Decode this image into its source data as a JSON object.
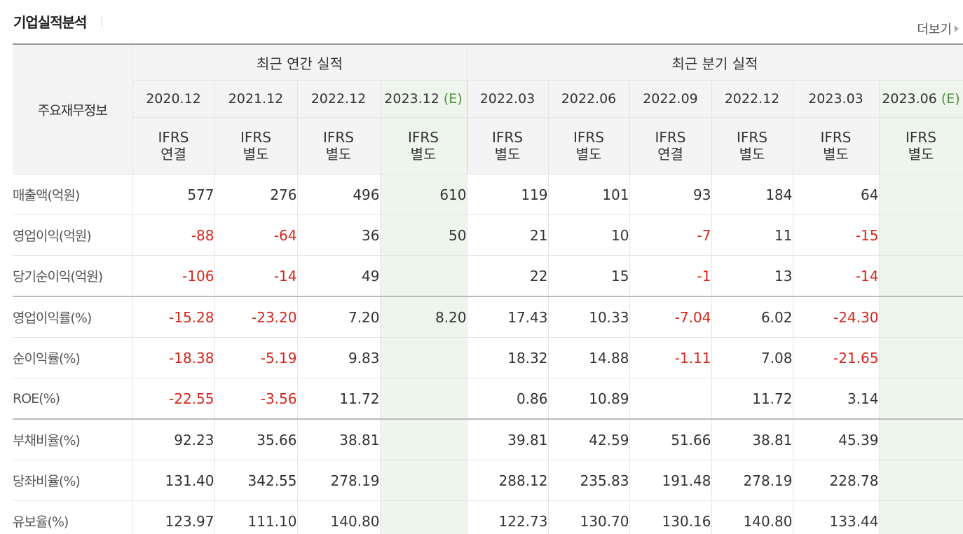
{
  "section": {
    "title": "기업실적분석",
    "more_label": "더보기"
  },
  "table": {
    "row_header_label": "주요재무정보",
    "annual_group_label": "최근 연간 실적",
    "quarter_group_label": "최근 분기 실적",
    "periods": [
      {
        "label": "2020.12",
        "est": "",
        "ifrs1": "IFRS",
        "ifrs2": "연결"
      },
      {
        "label": "2021.12",
        "est": "",
        "ifrs1": "IFRS",
        "ifrs2": "별도"
      },
      {
        "label": "2022.12",
        "est": "",
        "ifrs1": "IFRS",
        "ifrs2": "별도"
      },
      {
        "label": "2023.12",
        "est": "(E)",
        "ifrs1": "IFRS",
        "ifrs2": "별도"
      },
      {
        "label": "2022.03",
        "est": "",
        "ifrs1": "IFRS",
        "ifrs2": "별도"
      },
      {
        "label": "2022.06",
        "est": "",
        "ifrs1": "IFRS",
        "ifrs2": "별도"
      },
      {
        "label": "2022.09",
        "est": "",
        "ifrs1": "IFRS",
        "ifrs2": "연결"
      },
      {
        "label": "2022.12",
        "est": "",
        "ifrs1": "IFRS",
        "ifrs2": "별도"
      },
      {
        "label": "2023.03",
        "est": "",
        "ifrs1": "IFRS",
        "ifrs2": "별도"
      },
      {
        "label": "2023.06",
        "est": "(E)",
        "ifrs1": "IFRS",
        "ifrs2": "별도"
      }
    ],
    "rows": [
      {
        "label": "매출액(억원)",
        "values": [
          "577",
          "276",
          "496",
          "610",
          "119",
          "101",
          "93",
          "184",
          "64",
          ""
        ]
      },
      {
        "label": "영업이익(억원)",
        "values": [
          "-88",
          "-64",
          "36",
          "50",
          "21",
          "10",
          "-7",
          "11",
          "-15",
          ""
        ]
      },
      {
        "label": "당기순이익(억원)",
        "values": [
          "-106",
          "-14",
          "49",
          "",
          "22",
          "15",
          "-1",
          "13",
          "-14",
          ""
        ]
      },
      {
        "label": "영업이익률(%)",
        "values": [
          "-15.28",
          "-23.20",
          "7.20",
          "8.20",
          "17.43",
          "10.33",
          "-7.04",
          "6.02",
          "-24.30",
          ""
        ]
      },
      {
        "label": "순이익률(%)",
        "values": [
          "-18.38",
          "-5.19",
          "9.83",
          "",
          "18.32",
          "14.88",
          "-1.11",
          "7.08",
          "-21.65",
          ""
        ]
      },
      {
        "label": "ROE(%)",
        "values": [
          "-22.55",
          "-3.56",
          "11.72",
          "",
          "0.86",
          "10.89",
          "",
          "11.72",
          "3.14",
          ""
        ]
      },
      {
        "label": "부채비율(%)",
        "values": [
          "92.23",
          "35.66",
          "38.81",
          "",
          "39.81",
          "42.59",
          "51.66",
          "38.81",
          "45.39",
          ""
        ]
      },
      {
        "label": "당좌비율(%)",
        "values": [
          "131.40",
          "342.55",
          "278.19",
          "",
          "288.12",
          "235.83",
          "191.48",
          "278.19",
          "228.78",
          ""
        ]
      },
      {
        "label": "유보율(%)",
        "values": [
          "123.97",
          "111.10",
          "140.80",
          "",
          "122.73",
          "130.70",
          "130.16",
          "140.80",
          "133.44",
          ""
        ]
      }
    ]
  },
  "colors": {
    "negative": "#d7261c",
    "ifrs": "#e2622a",
    "estimate_bg": "#eef5ec",
    "estimate_mark": "#4a8f3c"
  }
}
